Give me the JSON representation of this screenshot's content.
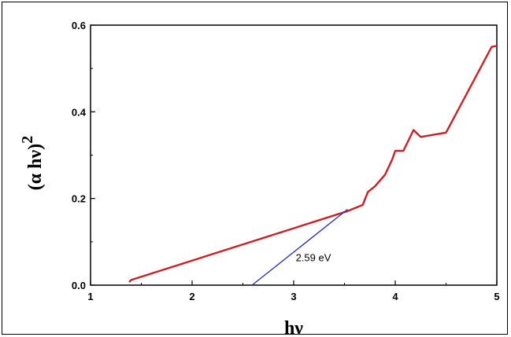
{
  "chart_data": {
    "type": "line",
    "xlabel": "hν",
    "ylabel": "(α hν)",
    "ylabel_sup": "2",
    "xlim": [
      1,
      5
    ],
    "ylim": [
      0,
      0.6
    ],
    "xticks": [
      1,
      2,
      3,
      4,
      5
    ],
    "yticks": [
      0.0,
      0.2,
      0.4,
      0.6
    ],
    "ytick_labels": [
      "0.0",
      "0.2",
      "0.4",
      "0.6"
    ],
    "grid": false,
    "series": [
      {
        "color": "#cc1f24",
        "x": [
          1.38,
          1.4,
          3.52,
          3.68,
          3.73,
          3.8,
          3.9,
          3.97,
          4.0,
          4.08,
          4.18,
          4.25,
          4.5,
          4.95,
          5.0
        ],
        "y": [
          0.007,
          0.012,
          0.17,
          0.185,
          0.215,
          0.228,
          0.255,
          0.29,
          0.31,
          0.31,
          0.358,
          0.342,
          0.352,
          0.55,
          0.552
        ]
      },
      {
        "color": "#2b34a8",
        "x": [
          2.59,
          3.53
        ],
        "y": [
          0.0,
          0.175
        ]
      }
    ],
    "annotations": [
      {
        "text": "2.59 eV",
        "x": 3.02,
        "y": 0.055
      }
    ]
  }
}
